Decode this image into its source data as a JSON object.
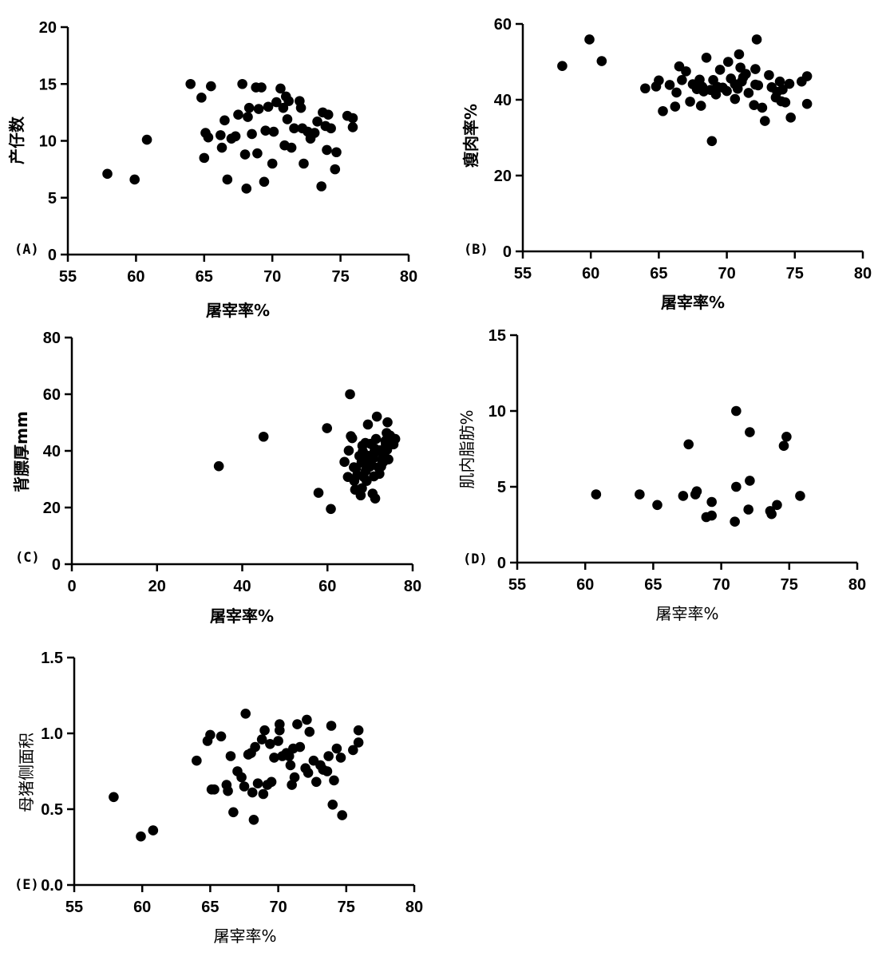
{
  "chart_data": [
    {
      "type": "scatter",
      "panel_label": "(A)",
      "xlabel": "屠宰率%",
      "ylabel": "产仔数",
      "xlim": [
        55,
        80
      ],
      "ylim": [
        0,
        20
      ],
      "xticks": [
        "55",
        "60",
        "65",
        "70",
        "75",
        "80"
      ],
      "yticks": [
        "0",
        "5",
        "10",
        "15",
        "20"
      ],
      "x": [
        57.9,
        59.9,
        60.8,
        64,
        64.8,
        65,
        65.1,
        65.3,
        65.5,
        66.2,
        66.3,
        66.5,
        66.7,
        67,
        67.3,
        67.5,
        67.8,
        68,
        68.1,
        68.2,
        68.3,
        68.5,
        68.8,
        68.9,
        69,
        69.2,
        69.4,
        69.5,
        69.7,
        70,
        70.1,
        70.3,
        70.6,
        70.8,
        70.9,
        71,
        71.1,
        71.2,
        71.4,
        71.6,
        72,
        72.1,
        72.2,
        72.3,
        72.6,
        72.8,
        73.1,
        73.3,
        73.6,
        73.7,
        73.9,
        74,
        74.1,
        74.3,
        74.6,
        74.7,
        75.5,
        75.9,
        75.9
      ],
      "y": [
        7.1,
        6.6,
        10.1,
        15,
        13.8,
        8.5,
        10.7,
        10.3,
        14.8,
        10.5,
        9.4,
        11.8,
        6.6,
        10.2,
        10.4,
        12.3,
        15,
        8.8,
        5.8,
        12.1,
        12.9,
        10.6,
        14.7,
        8.9,
        12.8,
        14.7,
        6.4,
        10.9,
        13,
        8,
        10.8,
        13.4,
        14.6,
        12.9,
        9.6,
        13.9,
        11.9,
        13.5,
        9.4,
        11.1,
        13.5,
        12.9,
        11.1,
        8,
        10.8,
        10.2,
        10.7,
        11.7,
        6,
        12.5,
        11.3,
        9.2,
        12.3,
        11.1,
        7.5,
        9,
        12.2,
        11.2,
        12
      ]
    },
    {
      "type": "scatter",
      "panel_label": "(B)",
      "xlabel": "屠宰率%",
      "ylabel": "瘦肉率%",
      "xlim": [
        55,
        80
      ],
      "ylim": [
        0,
        60
      ],
      "xticks": [
        "55",
        "60",
        "65",
        "70",
        "75",
        "80"
      ],
      "yticks": [
        "0",
        "20",
        "40",
        "60"
      ],
      "x": [
        57.9,
        59.9,
        60.8,
        64,
        64.8,
        65,
        65.3,
        65.8,
        66.2,
        66.3,
        66.5,
        66.7,
        67,
        67.3,
        67.5,
        67.8,
        68,
        68.1,
        68.2,
        68.3,
        68.5,
        68.8,
        68.9,
        69,
        69.2,
        69.3,
        69.5,
        69.7,
        70,
        70.1,
        70.3,
        70.6,
        70.8,
        70.9,
        71,
        71.1,
        71.2,
        71.4,
        71.6,
        72,
        72.1,
        72.2,
        72.3,
        72.6,
        72.8,
        73.1,
        73.3,
        73.6,
        73.7,
        73.9,
        74,
        74.1,
        74.3,
        74.6,
        74.7,
        75.5,
        75.9,
        75.9,
        72.1,
        70.6
      ],
      "y": [
        48.9,
        55.9,
        50.2,
        43,
        43.5,
        45.1,
        37,
        43.9,
        38.2,
        41.9,
        48.8,
        45.2,
        47.5,
        39.5,
        44.1,
        42.8,
        45.3,
        38.4,
        43.4,
        42.2,
        51.1,
        42.6,
        29.1,
        45.2,
        41.4,
        43.4,
        47.9,
        43.2,
        42.3,
        50,
        45.6,
        44.1,
        42.9,
        52,
        48.5,
        44.8,
        45.9,
        46.8,
        41.8,
        38.6,
        44,
        55.9,
        43.8,
        37.9,
        34.4,
        46.5,
        43.3,
        40.6,
        42.1,
        44.8,
        39.6,
        42.7,
        39.3,
        44.2,
        35.3,
        44.8,
        46.2,
        38.9,
        48.1,
        40.2
      ]
    },
    {
      "type": "scatter",
      "panel_label": "(C)",
      "xlabel": "屠宰率%",
      "ylabel": "背膘厚mm",
      "xlim": [
        0,
        80
      ],
      "ylim": [
        0,
        80
      ],
      "xticks": [
        "0",
        "20",
        "40",
        "60",
        "80"
      ],
      "yticks": [
        "0",
        "20",
        "40",
        "60",
        "80"
      ],
      "x": [
        34.5,
        45,
        57.9,
        59.9,
        60.8,
        64,
        64.8,
        65,
        65.3,
        65.5,
        65.8,
        66.2,
        66.3,
        66.5,
        66.7,
        67,
        67.3,
        67.5,
        67.8,
        68,
        68.1,
        68.2,
        68.3,
        68.5,
        68.8,
        68.9,
        69,
        69.2,
        69.4,
        69.5,
        69.7,
        70,
        70.1,
        70.3,
        70.6,
        70.8,
        70.9,
        71,
        71.1,
        71.2,
        71.4,
        71.6,
        72,
        72.1,
        72.2,
        72.3,
        72.6,
        72.8,
        73.1,
        73.3,
        73.6,
        73.7,
        73.9,
        74,
        74.1,
        74.3,
        74.6,
        74.7,
        75.5,
        75.9
      ],
      "y": [
        34.6,
        45,
        25.2,
        48,
        19.5,
        36.1,
        30.8,
        40.1,
        60,
        45.2,
        44.5,
        34.2,
        29.4,
        26.3,
        33.8,
        31.5,
        26.2,
        38.2,
        24.3,
        35.9,
        26.8,
        41.8,
        39.8,
        30.8,
        36.9,
        42.8,
        33,
        29.4,
        38.3,
        49.3,
        36.4,
        34.5,
        42.5,
        35,
        24.9,
        37.4,
        31,
        39.5,
        40.8,
        23.2,
        44.2,
        52.1,
        34.2,
        39.8,
        31.9,
        40.2,
        34.5,
        36.8,
        36.1,
        38.2,
        43.5,
        42.3,
        46.3,
        40.4,
        50.1,
        37,
        43,
        45.4,
        42.3,
        44.2
      ]
    },
    {
      "type": "scatter",
      "panel_label": "(D)",
      "xlabel": "屠宰率%",
      "ylabel": "肌内脂肪%",
      "xlim": [
        55,
        80
      ],
      "ylim": [
        0,
        15
      ],
      "xticks": [
        "55",
        "60",
        "65",
        "70",
        "75",
        "80"
      ],
      "yticks": [
        "0",
        "5",
        "10",
        "15"
      ],
      "x": [
        60.8,
        64,
        65.3,
        67.2,
        67.6,
        68.1,
        68.2,
        68.9,
        69.3,
        69.3,
        71,
        71.1,
        71.1,
        72,
        72.1,
        72.1,
        73.6,
        73.7,
        74.1,
        74.6,
        74.8,
        75.8
      ],
      "y": [
        4.5,
        4.5,
        3.8,
        4.4,
        7.8,
        4.5,
        4.7,
        3,
        3.1,
        4,
        2.7,
        10,
        5,
        3.5,
        5.4,
        8.6,
        3.4,
        3.2,
        3.8,
        7.7,
        8.3,
        4.4
      ]
    },
    {
      "type": "scatter",
      "panel_label": "(E)",
      "xlabel": "屠宰率%",
      "ylabel": "母猪侧面积",
      "xlim": [
        55,
        80
      ],
      "ylim": [
        0,
        1.5
      ],
      "xticks": [
        "55",
        "60",
        "65",
        "70",
        "75",
        "80"
      ],
      "yticks": [
        "0.0",
        "0.5",
        "1.0",
        "1.5"
      ],
      "x": [
        57.9,
        59.9,
        60.8,
        64,
        64.8,
        65,
        65.1,
        65.3,
        65.8,
        66.2,
        66.3,
        66.5,
        66.7,
        67,
        67.3,
        67.5,
        67.6,
        67.8,
        68,
        68.1,
        68.2,
        68.3,
        68.5,
        68.8,
        68.9,
        69,
        69.2,
        69.4,
        69.5,
        69.7,
        70,
        70.1,
        70.1,
        70.3,
        70.6,
        70.8,
        70.9,
        71,
        71.1,
        71.2,
        71.4,
        71.6,
        72,
        72.1,
        72.2,
        72.3,
        72.6,
        72.8,
        73.1,
        73.3,
        73.6,
        73.7,
        73.9,
        74,
        74.1,
        74.3,
        74.6,
        74.7,
        75.5,
        75.9,
        75.9
      ],
      "y": [
        0.58,
        0.32,
        0.36,
        0.82,
        0.95,
        0.99,
        0.63,
        0.63,
        0.98,
        0.66,
        0.62,
        0.85,
        0.48,
        0.75,
        0.71,
        0.65,
        1.13,
        0.86,
        0.87,
        0.61,
        0.43,
        0.91,
        0.67,
        0.96,
        0.6,
        1.02,
        0.66,
        0.93,
        0.68,
        0.84,
        0.95,
        1.06,
        1.02,
        0.85,
        0.87,
        0.85,
        0.79,
        0.66,
        0.9,
        0.71,
        1.06,
        0.91,
        0.77,
        1.09,
        0.74,
        1.01,
        0.82,
        0.68,
        0.79,
        0.76,
        0.75,
        0.85,
        1.05,
        0.53,
        0.69,
        0.9,
        0.84,
        0.46,
        0.89,
        1.02,
        0.94
      ]
    }
  ]
}
